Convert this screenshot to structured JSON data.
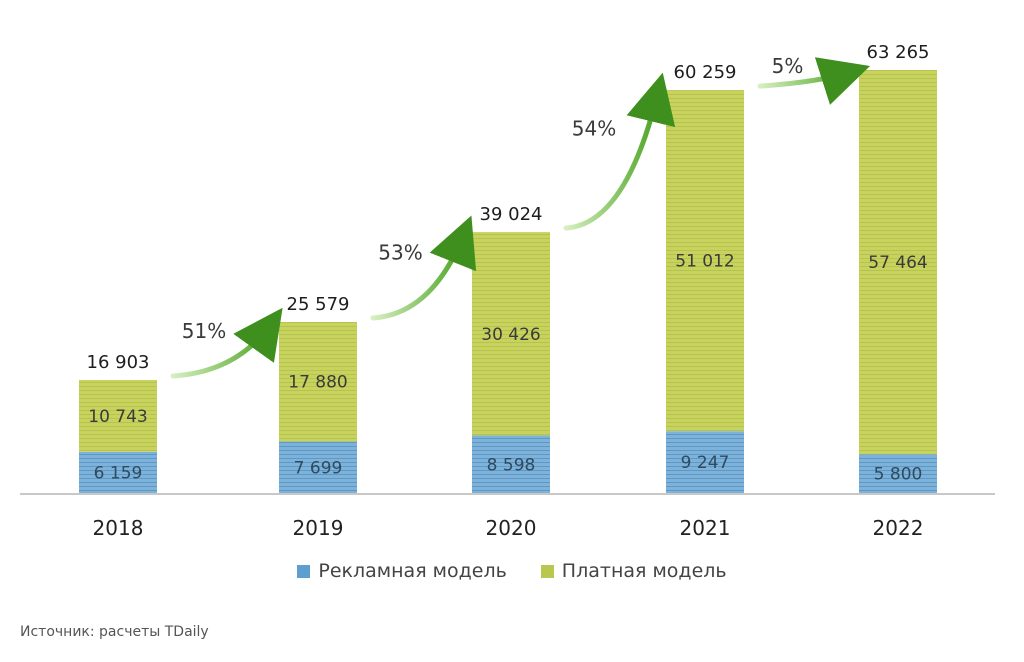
{
  "chart_data": {
    "type": "bar",
    "stacked": true,
    "title": "",
    "xlabel": "",
    "ylabel": "",
    "categories": [
      "2018",
      "2019",
      "2020",
      "2021",
      "2022"
    ],
    "series": [
      {
        "name": "Рекламная модель",
        "color": "#6fa8d2",
        "values": [
          6159,
          7699,
          8598,
          9247,
          5800
        ]
      },
      {
        "name": "Платная модель",
        "color": "#c3cf5a",
        "values": [
          10743,
          17880,
          30426,
          51012,
          57464
        ]
      }
    ],
    "totals": [
      "16 903",
      "25 579",
      "39 024",
      "60 259",
      "63 265"
    ],
    "segment_labels": {
      "ad": [
        "6 159",
        "7 699",
        "8 598",
        "9 247",
        "5 800"
      ],
      "paid": [
        "10 743",
        "17 880",
        "30 426",
        "51 012",
        "57 464"
      ]
    },
    "growth_annotations": [
      "51%",
      "53%",
      "54%",
      "5%"
    ],
    "ylim": [
      0,
      63265
    ],
    "grid": false,
    "legend_position": "bottom-center",
    "arrow_color": "#5cb531"
  },
  "legend": {
    "items": [
      {
        "label": "Рекламная модель",
        "color": "#6fa8d2"
      },
      {
        "label": "Платная модель",
        "color": "#c3cf5a"
      }
    ]
  },
  "source": "Источник: расчеты TDaily"
}
